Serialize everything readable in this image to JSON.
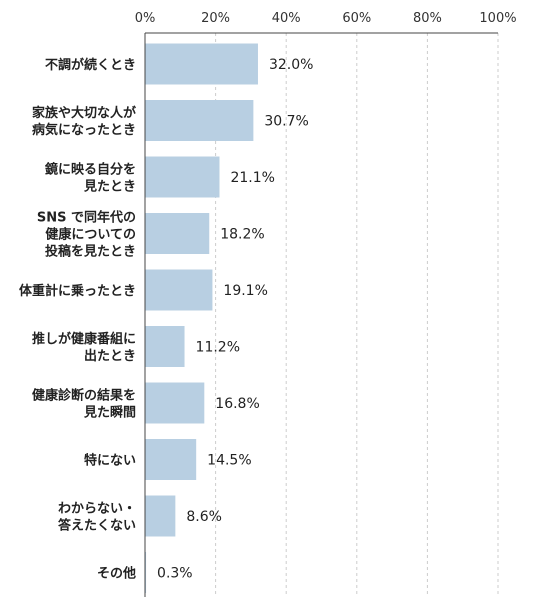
{
  "chart_data": {
    "type": "bar",
    "orientation": "horizontal",
    "categories": [
      [
        "不調が続くとき"
      ],
      [
        "家族や大切な人が",
        "病気になったとき"
      ],
      [
        "鏡に映る自分を",
        "見たとき"
      ],
      [
        "SNS で同年代の",
        "健康についての",
        "投稿を見たとき"
      ],
      [
        "体重計に乗ったとき"
      ],
      [
        "推しが健康番組に",
        "出たとき"
      ],
      [
        "健康診断の結果を",
        "見た瞬間"
      ],
      [
        "特にない"
      ],
      [
        "わからない・",
        "答えたくない"
      ],
      [
        "その他"
      ]
    ],
    "values": [
      32.0,
      30.7,
      21.1,
      18.2,
      19.1,
      11.2,
      16.8,
      14.5,
      8.6,
      0.3
    ],
    "value_labels": [
      "32.0%",
      "30.7%",
      "21.1%",
      "18.2%",
      "19.1%",
      "11.2%",
      "16.8%",
      "14.5%",
      "8.6%",
      "0.3%"
    ],
    "xlim": [
      0,
      100
    ],
    "ticks": [
      0,
      20,
      40,
      60,
      80,
      100
    ],
    "tick_labels": [
      "0%",
      "20%",
      "40%",
      "60%",
      "80%",
      "100%"
    ],
    "axis_position": "top",
    "grid": "vertical dashed",
    "colors": {
      "bar": "#b8cfe2",
      "axis": "#444444",
      "grid": "#cccccc"
    }
  }
}
